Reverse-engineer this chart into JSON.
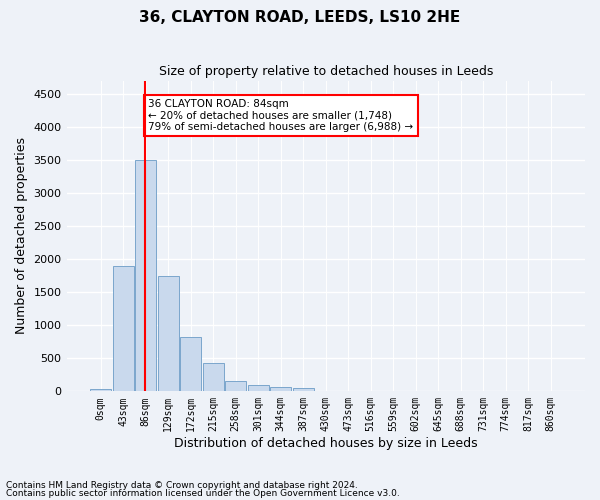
{
  "title1": "36, CLAYTON ROAD, LEEDS, LS10 2HE",
  "title2": "Size of property relative to detached houses in Leeds",
  "xlabel": "Distribution of detached houses by size in Leeds",
  "ylabel": "Number of detached properties",
  "bar_color": "#c9d9ed",
  "bar_edge_color": "#7aa6cc",
  "bin_labels": [
    "0sqm",
    "43sqm",
    "86sqm",
    "129sqm",
    "172sqm",
    "215sqm",
    "258sqm",
    "301sqm",
    "344sqm",
    "387sqm",
    "430sqm",
    "473sqm",
    "516sqm",
    "559sqm",
    "602sqm",
    "645sqm",
    "688sqm",
    "731sqm",
    "774sqm",
    "817sqm",
    "860sqm"
  ],
  "bar_heights": [
    30,
    1900,
    3500,
    1750,
    820,
    430,
    155,
    95,
    70,
    55,
    0,
    0,
    0,
    0,
    0,
    0,
    0,
    0,
    0,
    0,
    0
  ],
  "ylim": [
    0,
    4700
  ],
  "yticks": [
    0,
    500,
    1000,
    1500,
    2000,
    2500,
    3000,
    3500,
    4000,
    4500
  ],
  "annotation_text": "36 CLAYTON ROAD: 84sqm\n← 20% of detached houses are smaller (1,748)\n79% of semi-detached houses are larger (6,988) →",
  "annotation_box_color": "white",
  "annotation_box_edge_color": "red",
  "vline_color": "red",
  "footer1": "Contains HM Land Registry data © Crown copyright and database right 2024.",
  "footer2": "Contains public sector information licensed under the Open Government Licence v3.0.",
  "background_color": "#eef2f8"
}
